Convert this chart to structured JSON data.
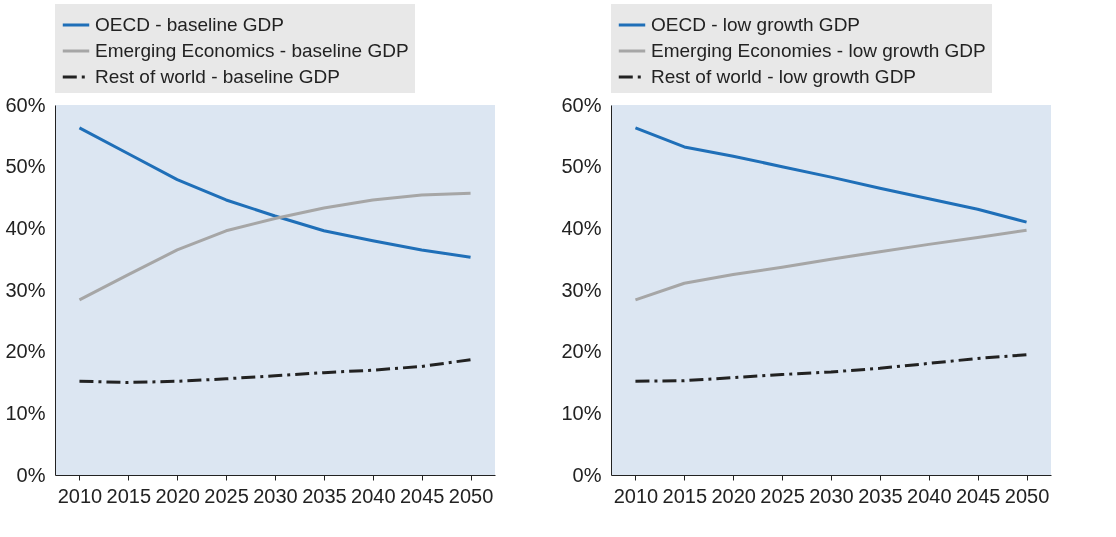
{
  "chart_data": [
    {
      "type": "line",
      "x": [
        2010,
        2015,
        2020,
        2025,
        2030,
        2035,
        2040,
        2045,
        2050
      ],
      "xlim": [
        2007.5,
        2052.5
      ],
      "xticks": [
        2010,
        2015,
        2020,
        2025,
        2030,
        2035,
        2040,
        2045,
        2050
      ],
      "ylim": [
        0,
        60
      ],
      "yticks": [
        {
          "value": 0,
          "label": "0%"
        },
        {
          "value": 10,
          "label": "10%"
        },
        {
          "value": 20,
          "label": "20%"
        },
        {
          "value": 30,
          "label": "30%"
        },
        {
          "value": 40,
          "label": "40%"
        },
        {
          "value": 50,
          "label": "50%"
        },
        {
          "value": 60,
          "label": "60%"
        }
      ],
      "legend": "top",
      "grid": false,
      "series": [
        {
          "name": "OECD - baseline GDP",
          "color": "#1f6fb8",
          "line_style": "solid",
          "values": [
            56.3,
            52.1,
            47.9,
            44.6,
            42.0,
            39.6,
            38.0,
            36.5,
            35.3
          ]
        },
        {
          "name": "Emerging Economics - baseline GDP",
          "color": "#a6a6a6",
          "line_style": "solid",
          "values": [
            28.4,
            32.5,
            36.5,
            39.6,
            41.6,
            43.3,
            44.6,
            45.4,
            45.7
          ]
        },
        {
          "name": "Rest of world - baseline GDP",
          "color": "#222222",
          "line_style": "dashed",
          "values": [
            15.2,
            15.0,
            15.2,
            15.6,
            16.1,
            16.6,
            17.0,
            17.6,
            18.7
          ]
        }
      ]
    },
    {
      "type": "line",
      "x": [
        2010,
        2015,
        2020,
        2025,
        2030,
        2035,
        2040,
        2045,
        2050
      ],
      "xlim": [
        2007.5,
        2052.5
      ],
      "xticks": [
        2010,
        2015,
        2020,
        2025,
        2030,
        2035,
        2040,
        2045,
        2050
      ],
      "ylim": [
        0,
        60
      ],
      "yticks": [
        {
          "value": 0,
          "label": "0%"
        },
        {
          "value": 10,
          "label": "10%"
        },
        {
          "value": 20,
          "label": "20%"
        },
        {
          "value": 30,
          "label": "30%"
        },
        {
          "value": 40,
          "label": "40%"
        },
        {
          "value": 50,
          "label": "50%"
        },
        {
          "value": 60,
          "label": "60%"
        }
      ],
      "legend": "top",
      "grid": false,
      "series": [
        {
          "name": "OECD - low growth GDP",
          "color": "#1f6fb8",
          "line_style": "solid",
          "values": [
            56.3,
            53.2,
            51.7,
            50.0,
            48.3,
            46.5,
            44.8,
            43.1,
            41.0
          ]
        },
        {
          "name": "Emerging Economies - low growth GDP",
          "color": "#a6a6a6",
          "line_style": "solid",
          "values": [
            28.4,
            31.1,
            32.5,
            33.7,
            35.0,
            36.2,
            37.4,
            38.5,
            39.7
          ]
        },
        {
          "name": "Rest of world - low growth GDP",
          "color": "#222222",
          "line_style": "dashed",
          "values": [
            15.2,
            15.3,
            15.8,
            16.3,
            16.7,
            17.3,
            18.1,
            18.9,
            19.5
          ]
        }
      ]
    }
  ]
}
